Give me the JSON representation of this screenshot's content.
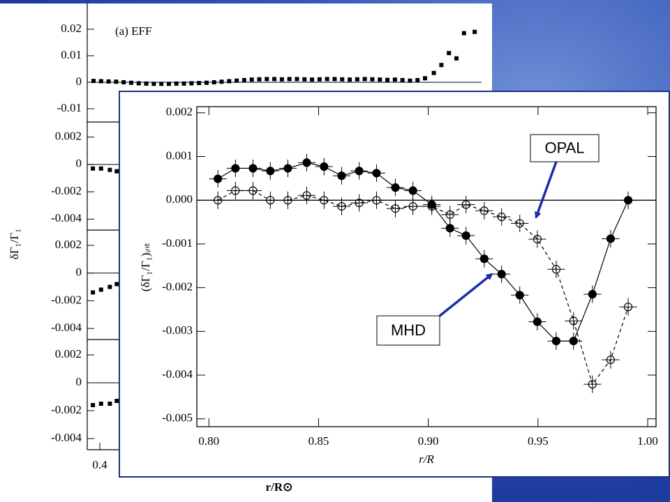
{
  "chart_data": [
    {
      "type": "scatter",
      "ylabel": "δΓ₁/Γ₁",
      "xlabel": "r/R⊙",
      "xlim": [
        0.38,
        1.008
      ],
      "xticks": [
        0.4
      ],
      "color": "#000000",
      "panels": [
        {
          "annotation": "(a) EFF",
          "ylim": [
            -0.015,
            0.0297
          ],
          "yticks": [
            0.02,
            0.01,
            0,
            -0.01
          ],
          "x": [
            0.39,
            0.402,
            0.414,
            0.426,
            0.438,
            0.45,
            0.462,
            0.474,
            0.486,
            0.498,
            0.51,
            0.522,
            0.534,
            0.546,
            0.558,
            0.57,
            0.582,
            0.594,
            0.606,
            0.618,
            0.63,
            0.642,
            0.654,
            0.666,
            0.678,
            0.69,
            0.702,
            0.714,
            0.726,
            0.738,
            0.75,
            0.762,
            0.774,
            0.786,
            0.798,
            0.81,
            0.822,
            0.834,
            0.846,
            0.858,
            0.87,
            0.882,
            0.894,
            0.906,
            0.918,
            0.932,
            0.944,
            0.956,
            0.968,
            0.98,
            0.997
          ],
          "values": [
            0.0005,
            0.0004,
            0.0003,
            0.0002,
            0,
            -0.0002,
            -0.0004,
            -0.0005,
            -0.0006,
            -0.0006,
            -0.0006,
            -0.0005,
            -0.0005,
            -0.0004,
            -0.0003,
            -0.0002,
            0,
            0.0002,
            0.0004,
            0.0006,
            0.0008,
            0.001,
            0.0011,
            0.0012,
            0.0012,
            0.0011,
            0.0012,
            0.0012,
            0.0011,
            0.001,
            0.0011,
            0.0012,
            0.0012,
            0.0011,
            0.001,
            0.0011,
            0.0012,
            0.0011,
            0.001,
            0.0009,
            0.001,
            0.0008,
            0.0006,
            0.0008,
            0.0015,
            0.0035,
            0.0065,
            0.011,
            0.009,
            0.0185,
            0.019
          ]
        },
        {
          "ylim": [
            -0.0048,
            0.0031
          ],
          "yticks": [
            0.002,
            0,
            -0.002,
            -0.004
          ],
          "x": [
            0.389,
            0.402,
            0.416,
            0.427
          ],
          "values": [
            -0.0003,
            -0.0003,
            -0.0004,
            -0.0005
          ]
        },
        {
          "ylim": [
            -0.0048,
            0.0031
          ],
          "yticks": [
            0.002,
            0,
            -0.002,
            -0.004
          ],
          "x": [
            0.389,
            0.402,
            0.416,
            0.427
          ],
          "values": [
            -0.0014,
            -0.0012,
            -0.001,
            -0.0008
          ]
        },
        {
          "ylim": [
            -0.0048,
            0.0031
          ],
          "yticks": [
            0.002,
            0,
            -0.002,
            -0.004
          ],
          "x": [
            0.389,
            0.402,
            0.416,
            0.427
          ],
          "values": [
            -0.0016,
            -0.0015,
            -0.0015,
            -0.0013
          ]
        }
      ]
    },
    {
      "type": "line",
      "xlabel": "r/R",
      "ylabel": "(δΓ₁/Γ₁)ᵢₙₜ",
      "xlim": [
        0.7945,
        1.0038
      ],
      "xticks": [
        {
          "value": 0.8,
          "label": "0.80"
        },
        0.85,
        {
          "value": 0.9,
          "label": "0.90"
        },
        0.95,
        {
          "value": 1,
          "label": "1.00"
        }
      ],
      "ylim": [
        -0.00518,
        0.00214
      ],
      "yticks": [
        0.002,
        0.001,
        {
          "value": 0,
          "label": "0.000"
        },
        -0.001,
        -0.002,
        -0.003,
        -0.004,
        -0.005
      ],
      "xerr": 0.004,
      "x": [
        0.8041,
        0.8121,
        0.8201,
        0.828,
        0.836,
        0.8446,
        0.8525,
        0.8605,
        0.8685,
        0.8764,
        0.885,
        0.893,
        0.9016,
        0.9099,
        0.9172,
        0.9255,
        0.9334,
        0.9417,
        0.9497,
        0.9583,
        0.9662,
        0.9748,
        0.9831,
        0.9911
      ],
      "series": [
        {
          "name": "OPAL",
          "color": "#000000",
          "marker": "open",
          "dash": true,
          "yerr": 0.0002,
          "values": [
            0,
            0.00022,
            0.00022,
            0,
            0,
            0.00011,
            0,
            -0.00014,
            -6e-05,
            0,
            -0.00019,
            -0.00014,
            -0.00014,
            -0.00033,
            -0.0001,
            -0.00024,
            -0.00038,
            -0.00053,
            -0.00089,
            -0.00158,
            -0.00276,
            -0.00421,
            -0.00365,
            -0.00244
          ]
        },
        {
          "name": "MHD",
          "color": "#000000",
          "marker": "filled",
          "dash": false,
          "yerr": 0.0002,
          "values": [
            0.00049,
            0.00073,
            0.00073,
            0.00067,
            0.00073,
            0.00086,
            0.00077,
            0.00056,
            0.00067,
            0.00062,
            0.00029,
            0.00022,
            -0.0001,
            -0.00064,
            -0.00081,
            -0.00134,
            -0.00169,
            -0.00217,
            -0.00278,
            -0.00322,
            -0.00322,
            -0.00215,
            -0.00088,
            0
          ]
        }
      ]
    }
  ]
}
